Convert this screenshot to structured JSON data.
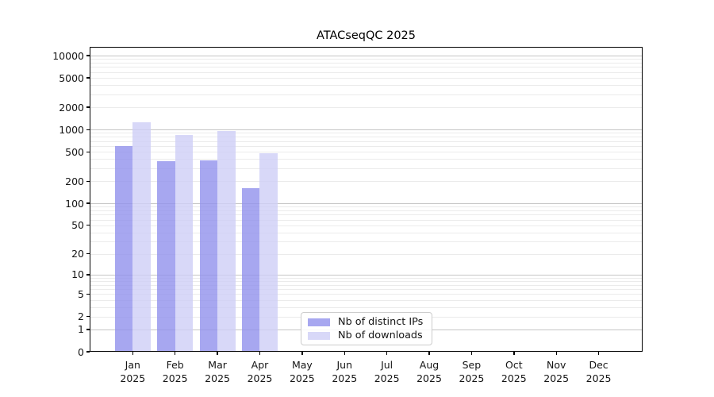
{
  "title": "ATACseqQC 2025",
  "legend": {
    "items": [
      {
        "label": "Nb of distinct IPs",
        "color": "rgba(145,145,236,0.8)"
      },
      {
        "label": "Nb of downloads",
        "color": "rgba(206,206,246,0.8)"
      }
    ]
  },
  "chart_data": {
    "type": "bar",
    "title": "ATACseqQC 2025",
    "y_scale": "log1p",
    "grid": "on",
    "legend_position": "lower-center",
    "xlabel": "",
    "ylabel": "",
    "categories": [
      "Jan 2025",
      "Feb 2025",
      "Mar 2025",
      "Apr 2025",
      "May 2025",
      "Jun 2025",
      "Jul 2025",
      "Aug 2025",
      "Sep 2025",
      "Oct 2025",
      "Nov 2025",
      "Dec 2025"
    ],
    "series": [
      {
        "name": "Nb of distinct IPs",
        "color": "rgba(145,145,236,0.8)",
        "values": [
          600,
          370,
          380,
          160,
          null,
          null,
          null,
          null,
          null,
          null,
          null,
          null
        ]
      },
      {
        "name": "Nb of downloads",
        "color": "rgba(206,206,246,0.8)",
        "values": [
          1250,
          850,
          960,
          475,
          null,
          null,
          null,
          null,
          null,
          null,
          null,
          null
        ]
      }
    ],
    "y_ticks": [
      0,
      1,
      2,
      5,
      10,
      20,
      50,
      100,
      200,
      500,
      1000,
      2000,
      5000,
      10000
    ],
    "ylim": [
      0,
      13000
    ]
  },
  "colors": {
    "major_grid": "#c5c5c5",
    "minor_grid": "#ebebeb",
    "axis": "#000000",
    "text": "#151515"
  }
}
